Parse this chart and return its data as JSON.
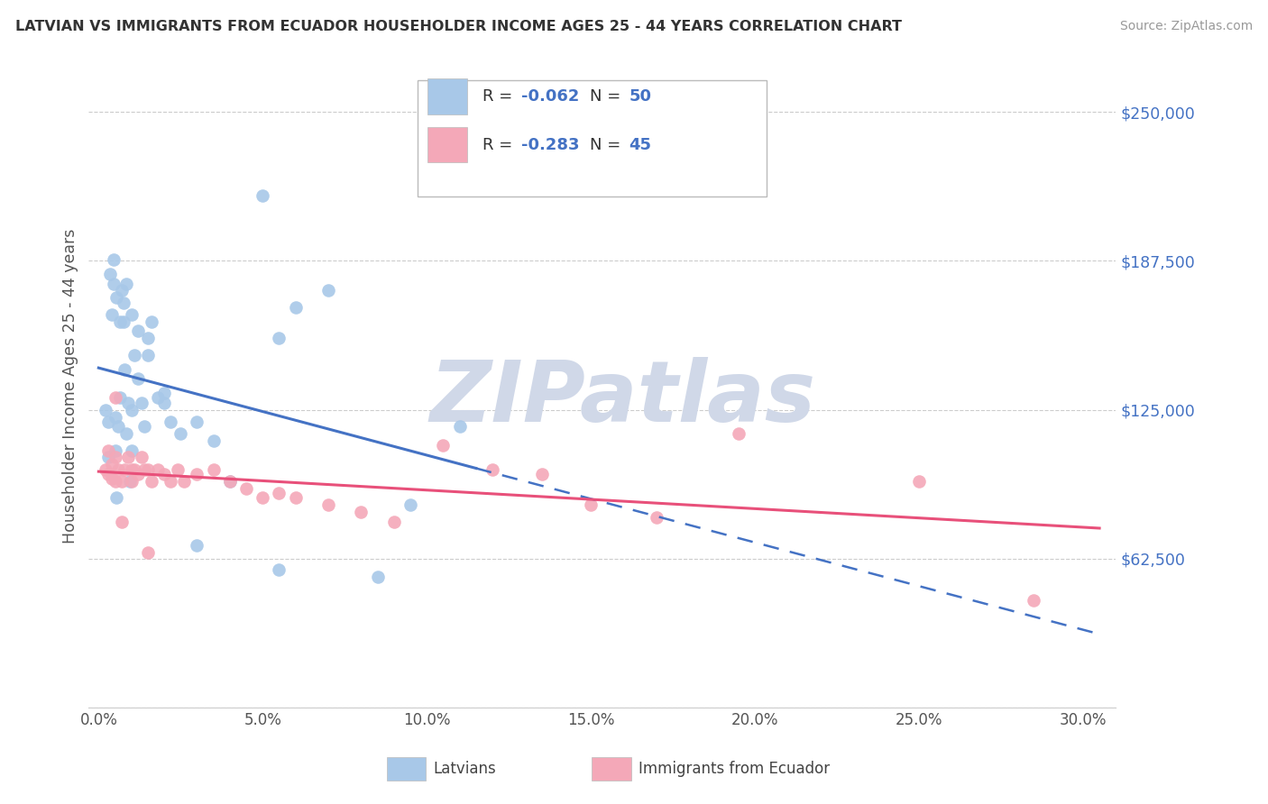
{
  "title": "LATVIAN VS IMMIGRANTS FROM ECUADOR HOUSEHOLDER INCOME AGES 25 - 44 YEARS CORRELATION CHART",
  "source": "Source: ZipAtlas.com",
  "ylabel": "Householder Income Ages 25 - 44 years",
  "yticks": [
    0,
    62500,
    125000,
    187500,
    250000
  ],
  "ytick_labels": [
    "",
    "$62,500",
    "$125,000",
    "$187,500",
    "$250,000"
  ],
  "xtick_vals": [
    0,
    5,
    10,
    15,
    20,
    25,
    30
  ],
  "xtick_labels": [
    "0.0%",
    "5.0%",
    "10.0%",
    "15.0%",
    "20.0%",
    "25.0%",
    "30.0%"
  ],
  "ylim": [
    0,
    270000
  ],
  "xlim": [
    -0.3,
    31.0
  ],
  "legend_r1": "-0.062",
  "legend_n1": "50",
  "legend_r2": "-0.283",
  "legend_n2": "45",
  "color_latvian": "#a8c8e8",
  "color_ecuador": "#f4a8b8",
  "color_trend_latvian": "#4472c4",
  "color_trend_ecuador": "#e8507a",
  "color_axis_text": "#4472c4",
  "color_tick_text": "#555555",
  "color_title": "#333333",
  "color_source": "#999999",
  "color_grid": "#cccccc",
  "watermark_text": "ZIPatlas",
  "watermark_color": "#d0d8e8",
  "lx": [
    0.2,
    0.3,
    0.3,
    0.4,
    0.45,
    0.5,
    0.5,
    0.55,
    0.6,
    0.65,
    0.7,
    0.75,
    0.8,
    0.85,
    0.9,
    0.95,
    1.0,
    1.0,
    1.1,
    1.2,
    1.3,
    1.4,
    1.5,
    1.6,
    1.8,
    2.0,
    2.2,
    2.5,
    3.0,
    3.5,
    4.0,
    5.0,
    5.5,
    6.0,
    7.0,
    8.5,
    9.5,
    11.0,
    0.35,
    0.45,
    0.55,
    0.65,
    0.75,
    0.85,
    1.0,
    1.2,
    1.5,
    2.0,
    3.0,
    5.5
  ],
  "ly": [
    125000,
    120000,
    105000,
    165000,
    178000,
    122000,
    108000,
    88000,
    118000,
    130000,
    175000,
    162000,
    142000,
    115000,
    128000,
    95000,
    125000,
    108000,
    148000,
    138000,
    128000,
    118000,
    155000,
    162000,
    130000,
    128000,
    120000,
    115000,
    120000,
    112000,
    95000,
    215000,
    155000,
    168000,
    175000,
    55000,
    85000,
    118000,
    182000,
    188000,
    172000,
    162000,
    170000,
    178000,
    165000,
    158000,
    148000,
    132000,
    68000,
    58000
  ],
  "ex": [
    0.2,
    0.3,
    0.4,
    0.4,
    0.5,
    0.5,
    0.6,
    0.7,
    0.8,
    0.9,
    1.0,
    1.0,
    1.1,
    1.2,
    1.3,
    1.4,
    1.5,
    1.6,
    1.8,
    2.0,
    2.2,
    2.4,
    2.6,
    3.0,
    3.5,
    4.0,
    4.5,
    5.0,
    5.5,
    6.0,
    7.0,
    8.0,
    9.0,
    10.5,
    12.0,
    13.5,
    15.0,
    17.0,
    19.5,
    25.0,
    28.5,
    0.3,
    0.5,
    0.7,
    1.5
  ],
  "ey": [
    100000,
    98000,
    96000,
    102000,
    95000,
    130000,
    100000,
    95000,
    100000,
    105000,
    100000,
    95000,
    100000,
    98000,
    105000,
    100000,
    100000,
    95000,
    100000,
    98000,
    95000,
    100000,
    95000,
    98000,
    100000,
    95000,
    92000,
    88000,
    90000,
    88000,
    85000,
    82000,
    78000,
    110000,
    100000,
    98000,
    85000,
    80000,
    115000,
    95000,
    45000,
    108000,
    105000,
    78000,
    65000
  ]
}
